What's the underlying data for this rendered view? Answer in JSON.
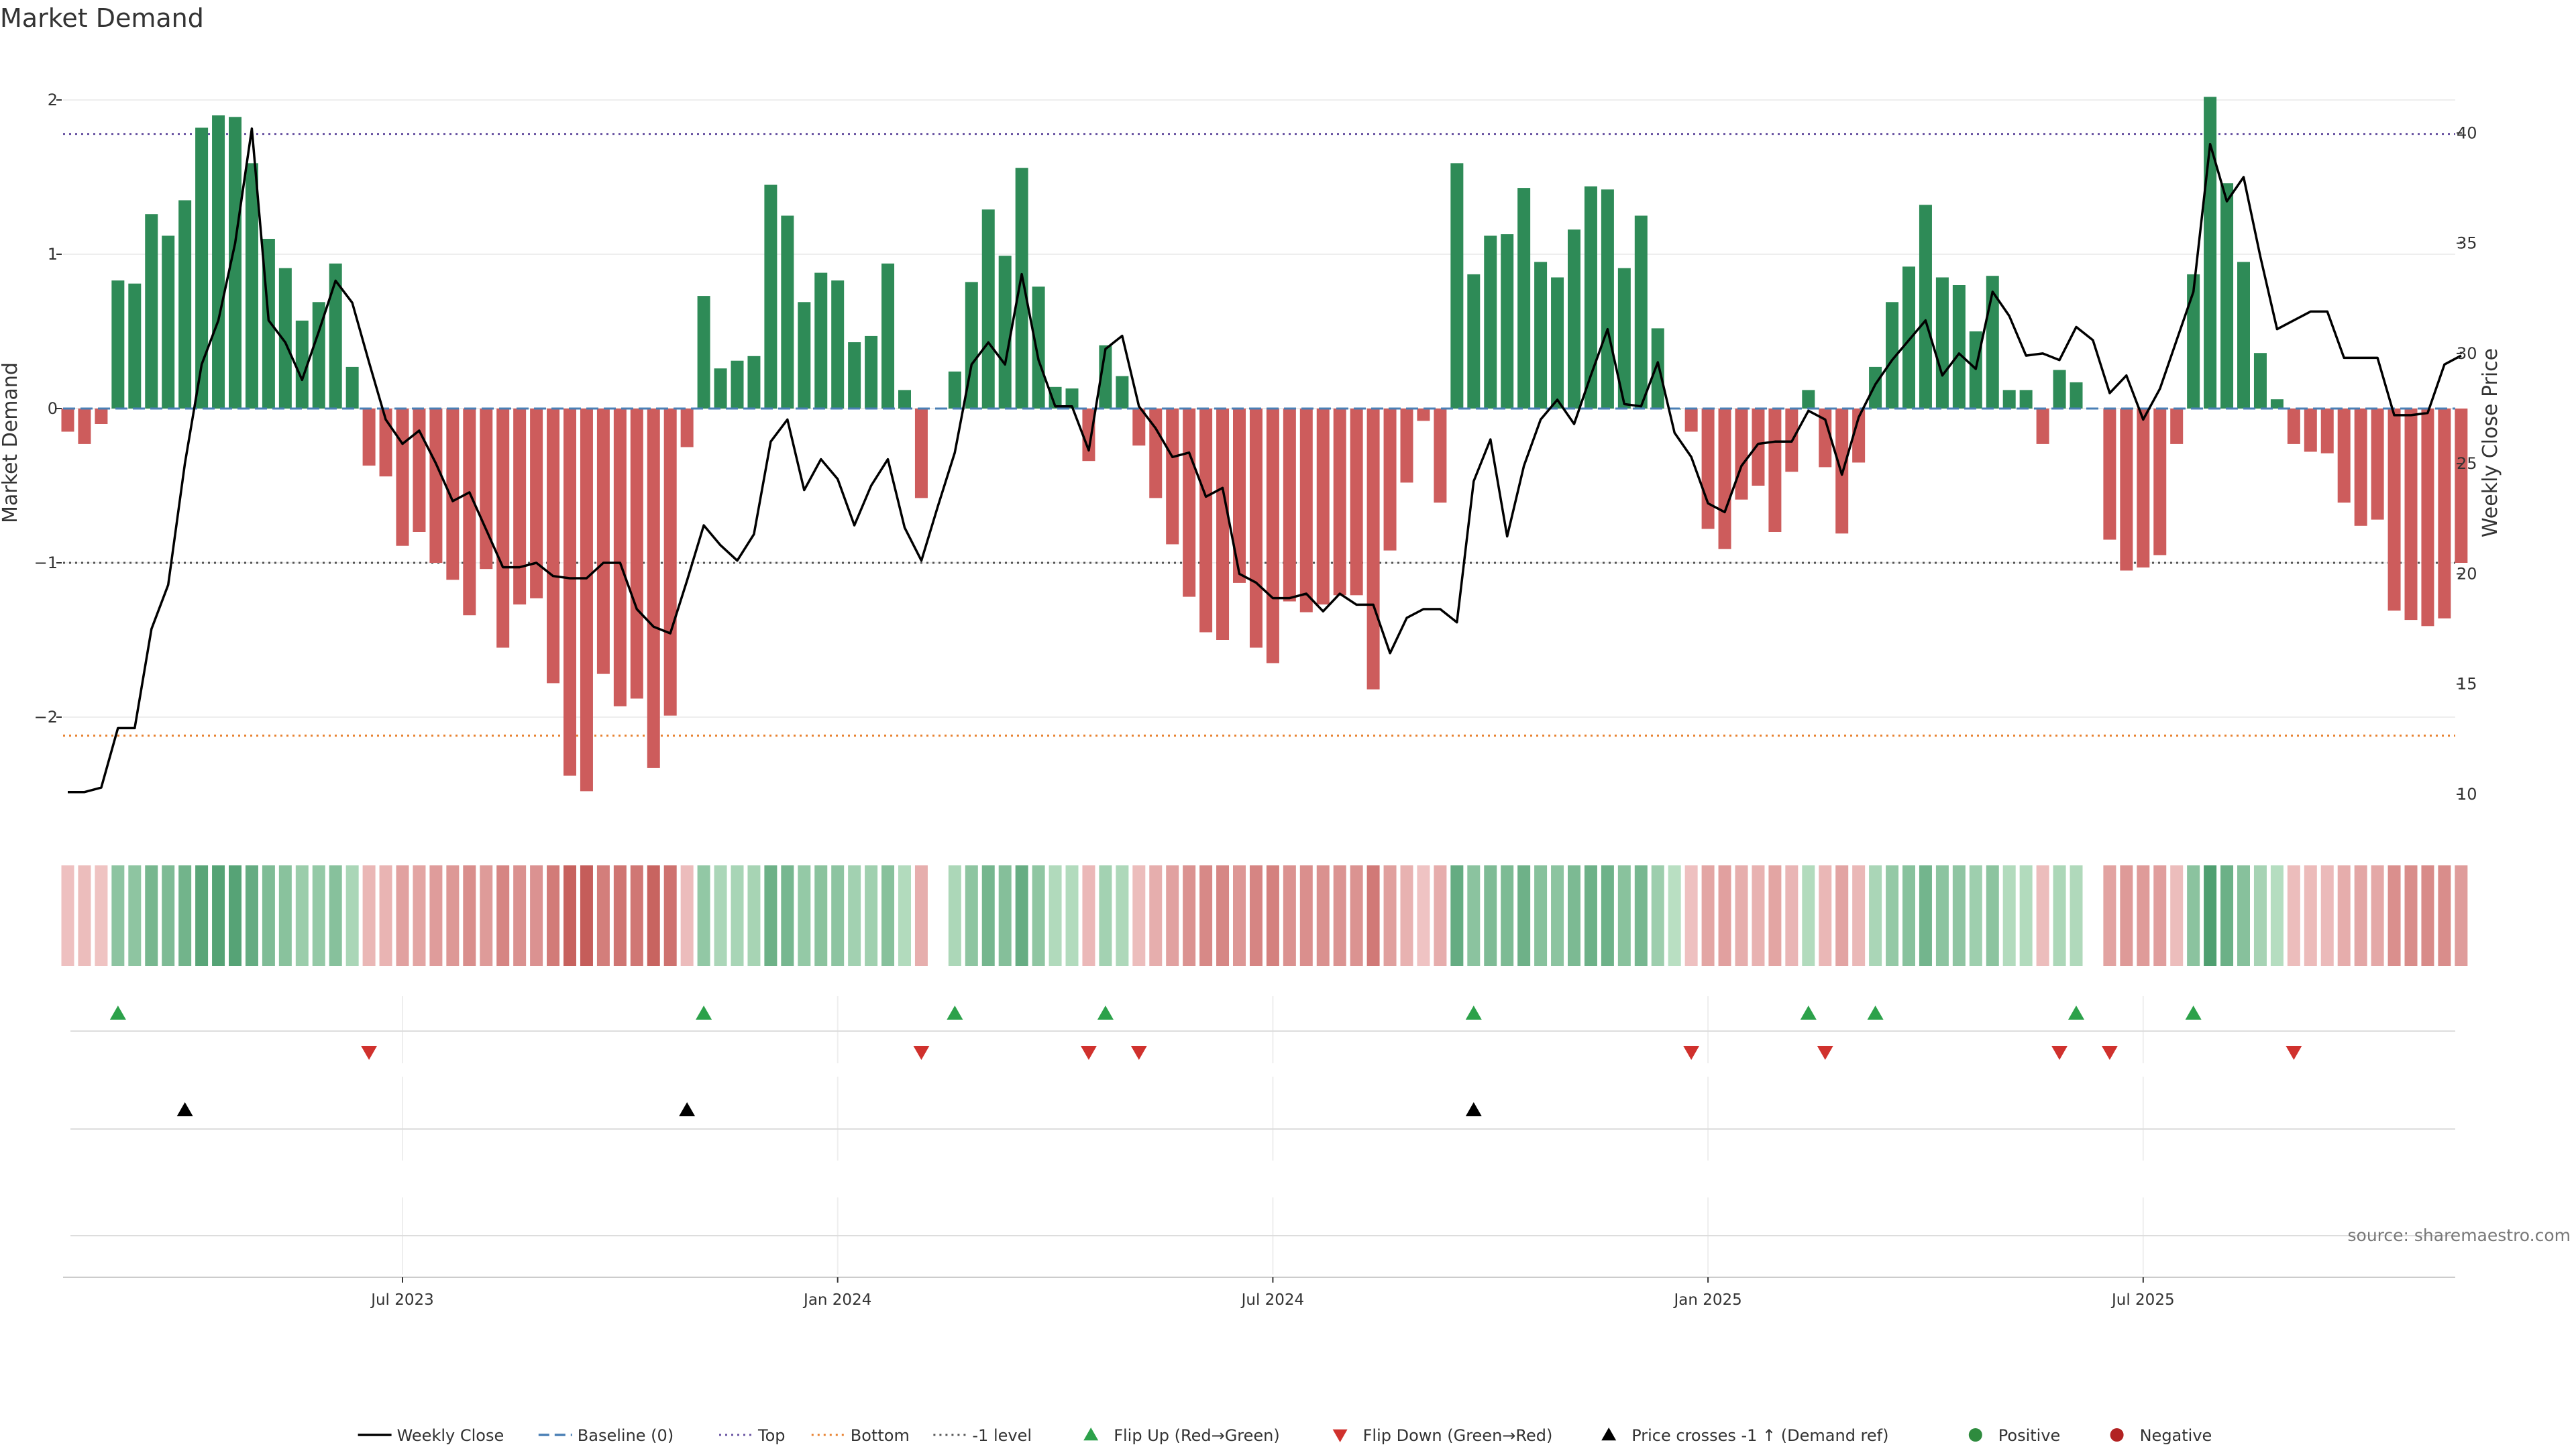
{
  "chart_data": {
    "type": "bar",
    "title": "Market Demand",
    "ylabel": "Market Demand",
    "y2label": "Weekly Close Price",
    "ylim": [
      -2.7,
      2.3
    ],
    "y2lim": [
      8.6,
      43.6
    ],
    "yticks": [
      2,
      1,
      0,
      -1,
      -2
    ],
    "ytick_labels": [
      "2",
      "1",
      "0",
      "−1",
      "−2"
    ],
    "y2ticks": [
      40,
      35,
      30,
      25,
      20,
      15,
      10
    ],
    "y2tick_labels": [
      "40",
      "35",
      "30",
      "25",
      "20",
      "15",
      "10"
    ],
    "x_tick_labels": [
      "Jul 2023",
      "Jan 2024",
      "Jul 2024",
      "Jan 2025",
      "Jul 2025"
    ],
    "x_tick_weeks": [
      20,
      46,
      72,
      98,
      124
    ],
    "reference_lines": {
      "top": 1.78,
      "bottom": -2.12,
      "minus_one": -1.0,
      "baseline": 0
    },
    "grid": true,
    "legend_position": "bottom-center",
    "demand": [
      -0.15,
      -0.23,
      -0.1,
      0.83,
      0.81,
      1.26,
      1.12,
      1.35,
      1.82,
      1.9,
      1.89,
      1.59,
      1.1,
      0.91,
      0.57,
      0.69,
      0.94,
      0.27,
      -0.37,
      -0.44,
      -0.89,
      -0.8,
      -1.0,
      -1.11,
      -1.34,
      -1.04,
      -1.55,
      -1.27,
      -1.23,
      -1.78,
      -2.38,
      -2.48,
      -1.72,
      -1.93,
      -1.88,
      -2.33,
      -1.99,
      -0.25,
      0.73,
      0.26,
      0.31,
      0.34,
      1.45,
      1.25,
      0.69,
      0.88,
      0.83,
      0.43,
      0.47,
      0.94,
      0.12,
      -0.58,
      0.0,
      0.24,
      0.82,
      1.29,
      0.99,
      1.56,
      0.79,
      0.14,
      0.13,
      -0.34,
      0.41,
      0.21,
      -0.24,
      -0.58,
      -0.88,
      -1.22,
      -1.45,
      -1.5,
      -1.13,
      -1.55,
      -1.65,
      -1.25,
      -1.32,
      -1.27,
      -1.21,
      -1.21,
      -1.82,
      -0.92,
      -0.48,
      -0.08,
      -0.61,
      1.59,
      0.87,
      1.12,
      1.13,
      1.43,
      0.95,
      0.85,
      1.16,
      1.44,
      1.42,
      0.91,
      1.25,
      0.52,
      0.0,
      -0.15,
      -0.78,
      -0.91,
      -0.59,
      -0.5,
      -0.8,
      -0.41,
      0.12,
      -0.38,
      -0.81,
      -0.35,
      0.27,
      0.69,
      0.92,
      1.32,
      0.85,
      0.8,
      0.5,
      0.86,
      0.12,
      0.12,
      -0.23,
      0.25,
      0.17,
      0.0,
      -0.85,
      -1.05,
      -1.03,
      -0.95,
      -0.23,
      0.87,
      2.02,
      1.46,
      0.95,
      0.36,
      0.06,
      -0.23,
      -0.28,
      -0.29,
      -0.61,
      -0.76,
      -0.72,
      -1.31,
      -1.37,
      -1.41,
      -1.36,
      -1.0
    ],
    "weekly_close": [
      10.1,
      10.1,
      10.3,
      13.0,
      13.0,
      17.5,
      19.5,
      25.0,
      29.5,
      31.5,
      35.0,
      40.2,
      31.5,
      30.5,
      28.8,
      31.0,
      33.3,
      32.3,
      29.6,
      27.0,
      25.9,
      26.5,
      25.0,
      23.3,
      23.7,
      22.0,
      20.3,
      20.3,
      20.5,
      19.9,
      19.8,
      19.8,
      20.5,
      20.5,
      18.4,
      17.6,
      17.3,
      19.7,
      22.2,
      21.3,
      20.6,
      21.8,
      26.0,
      27.0,
      23.8,
      25.2,
      24.3,
      22.2,
      24.0,
      25.2,
      22.1,
      20.6,
      23.1,
      25.5,
      29.5,
      30.5,
      29.5,
      33.6,
      29.7,
      27.6,
      27.6,
      25.6,
      30.2,
      30.8,
      27.6,
      26.6,
      25.3,
      25.5,
      23.5,
      23.9,
      20.0,
      19.6,
      18.9,
      18.9,
      19.1,
      18.3,
      19.1,
      18.6,
      18.6,
      16.4,
      18.0,
      18.4,
      18.4,
      17.8,
      24.2,
      26.1,
      21.7,
      24.9,
      27.0,
      27.9,
      26.8,
      29.0,
      31.1,
      27.7,
      27.6,
      29.6,
      26.4,
      25.3,
      23.2,
      22.8,
      24.9,
      25.9,
      26.0,
      26.0,
      27.4,
      27.0,
      24.5,
      27.1,
      28.6,
      29.7,
      30.6,
      31.5,
      29.0,
      30.0,
      29.3,
      32.8,
      31.7,
      29.9,
      30.0,
      29.7,
      31.2,
      30.6,
      28.2,
      29.0,
      27.0,
      28.4,
      30.6,
      32.8,
      39.5,
      36.9,
      38.0,
      34.4,
      31.1,
      31.5,
      31.9,
      31.9,
      29.8,
      29.8,
      29.8,
      27.2,
      27.2,
      27.3,
      29.5,
      29.9
    ],
    "flip_up_weeks": [
      3,
      38,
      53,
      62,
      84,
      104,
      108,
      120,
      127
    ],
    "flip_down_weeks": [
      18,
      51,
      61,
      64,
      97,
      105,
      119,
      122,
      133
    ],
    "price_cross_weeks": [
      7,
      37,
      84
    ],
    "hidden_bar_weeks": [
      52,
      121
    ]
  },
  "legend": [
    {
      "label": "Weekly Close",
      "symbol": "line",
      "color": "#000000"
    },
    {
      "label": "Baseline (0)",
      "symbol": "dash",
      "color": "#4a7fb5"
    },
    {
      "label": "Top",
      "symbol": "dot",
      "color": "#6a55a3"
    },
    {
      "label": "Bottom",
      "symbol": "dot",
      "color": "#e8812f"
    },
    {
      "label": "-1 level",
      "symbol": "dot",
      "color": "#555555"
    },
    {
      "label": "Flip Up (Red→Green)",
      "symbol": "triangle-up",
      "color": "#2ca14a"
    },
    {
      "label": "Flip Down (Green→Red)",
      "symbol": "triangle-down",
      "color": "#d0312d"
    },
    {
      "label": "Price crosses -1 ↑ (Demand ref)",
      "symbol": "triangle-up",
      "color": "#000000"
    },
    {
      "label": "Positive",
      "symbol": "circle",
      "color": "#2e8b3e"
    },
    {
      "label": "Negative",
      "symbol": "circle",
      "color": "#b22222"
    }
  ],
  "source": "source: sharemaestro.com",
  "colors": {
    "positive": "#2e8b57",
    "negative": "#cd5c5c",
    "price": "#000000",
    "baseline": "#4a7fb5",
    "top": "#6a55a3",
    "bottom": "#e8812f",
    "minus_one": "#555555"
  }
}
